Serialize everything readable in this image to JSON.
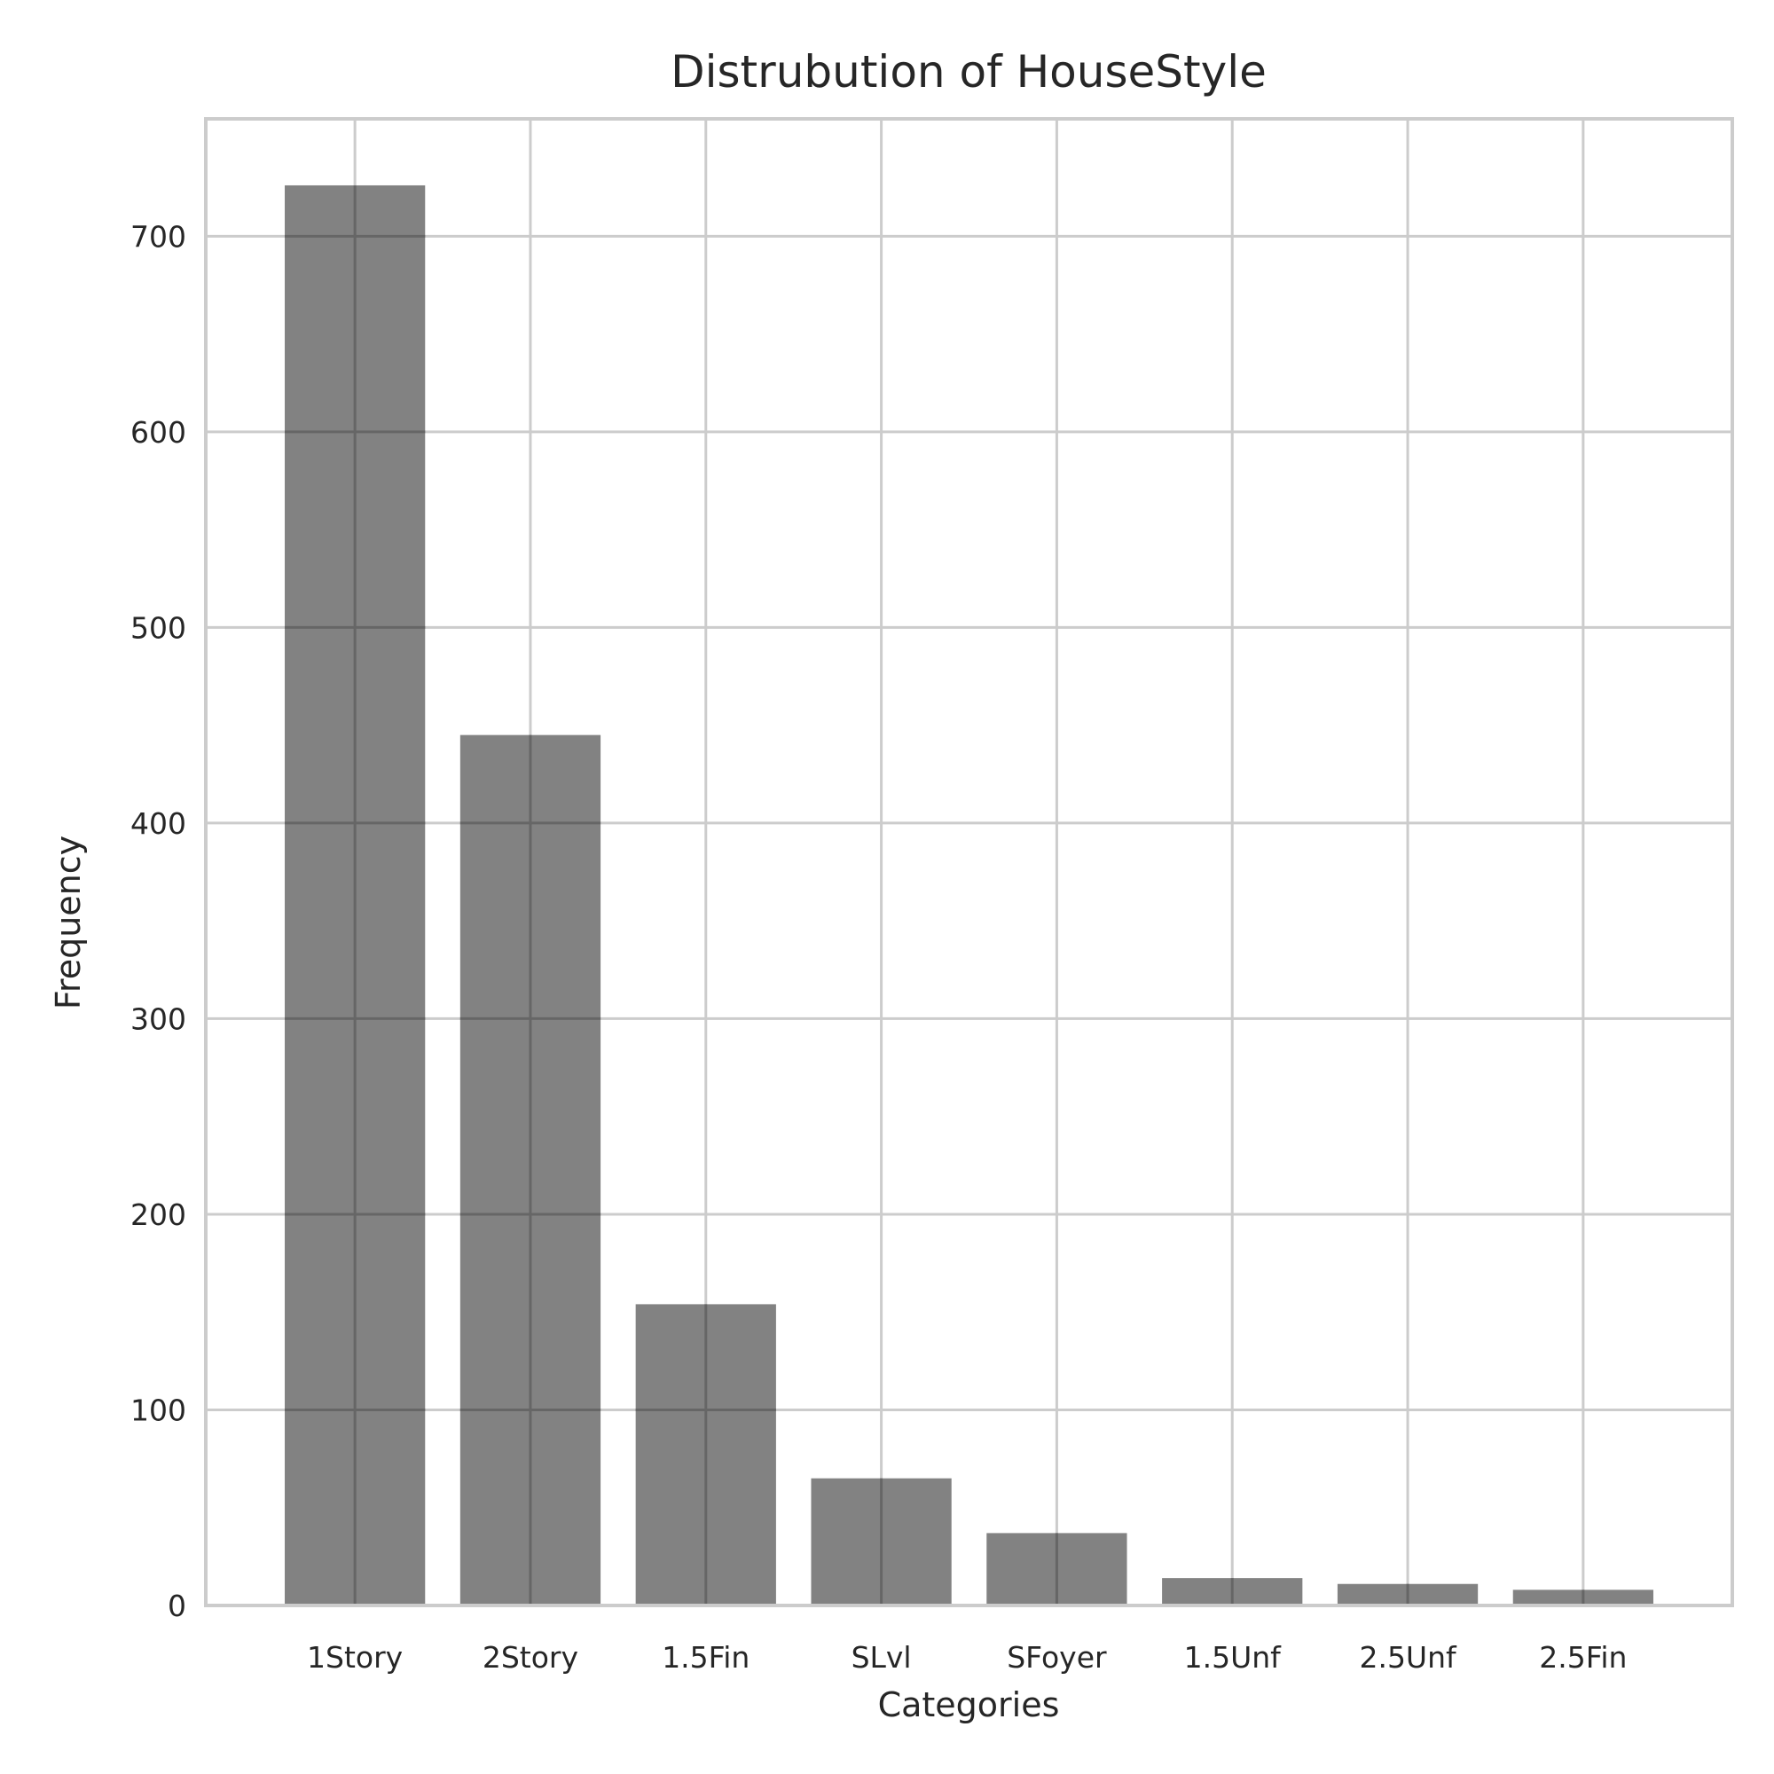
{
  "chart_data": {
    "type": "bar",
    "title": "Distrubution of HouseStyle",
    "xlabel": "Categories",
    "ylabel": "Frequency",
    "categories": [
      "1Story",
      "2Story",
      "1.5Fin",
      "SLvl",
      "SFoyer",
      "1.5Unf",
      "2.5Unf",
      "2.5Fin"
    ],
    "values": [
      726,
      445,
      154,
      65,
      37,
      14,
      11,
      8
    ],
    "ylim": [
      0,
      760
    ],
    "yticks": [
      0,
      100,
      200,
      300,
      400,
      500,
      600,
      700
    ],
    "grid": true,
    "bar_color": "#808080",
    "grid_color": "#cccccc",
    "text_color": "#262626"
  }
}
